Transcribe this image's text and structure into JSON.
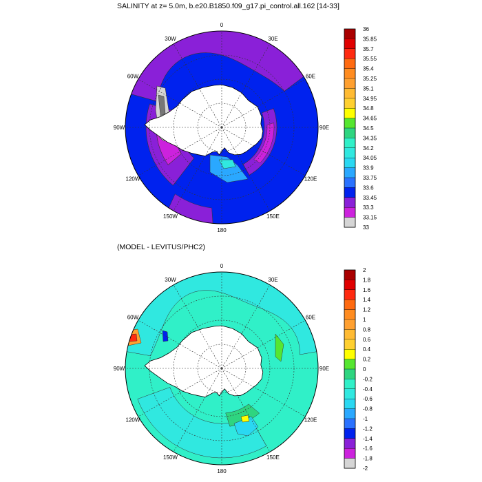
{
  "top_panel": {
    "title": "SALINITY at z=   5.0m, b.e20.B1850.f09_g17.pi_control.all.162 [14-33]",
    "colorbar": {
      "labels": [
        "36",
        "35.85",
        "35.7",
        "35.55",
        "35.4",
        "35.25",
        "35.1",
        "34.95",
        "34.8",
        "34.65",
        "34.5",
        "34.35",
        "34.2",
        "34.05",
        "33.9",
        "33.75",
        "33.6",
        "33.45",
        "33.3",
        "33.15",
        "33"
      ],
      "colors": [
        "#aa0000",
        "#e00000",
        "#ff2a10",
        "#ff6a10",
        "#ff8c20",
        "#ffa030",
        "#ffbb33",
        "#ffd030",
        "#ffff00",
        "#55e630",
        "#2ed580",
        "#30f0c8",
        "#30e8e0",
        "#2ad8f2",
        "#2aa8ff",
        "#2a72ff",
        "#0022ee",
        "#8a20d8",
        "#cc22dd",
        "#d5d5d5"
      ]
    },
    "lon_labels": [
      "0",
      "30E",
      "60E",
      "90E",
      "120E",
      "150E",
      "180",
      "150W",
      "120W",
      "90W",
      "60W",
      "30W"
    ]
  },
  "bottom_panel": {
    "title": "(MODEL - LEVITUS/PHC2)",
    "colorbar": {
      "labels": [
        "2",
        "1.8",
        "1.6",
        "1.4",
        "1.2",
        "1",
        "0.8",
        "0.6",
        "0.4",
        "0.2",
        "0",
        "-0.2",
        "-0.4",
        "-0.6",
        "-0.8",
        "-1",
        "-1.2",
        "-1.4",
        "-1.6",
        "-1.8",
        "-2"
      ],
      "colors": [
        "#aa0000",
        "#e00000",
        "#ff2a10",
        "#ff6a10",
        "#ff8c20",
        "#ffa030",
        "#ffbb33",
        "#ffd030",
        "#ffff00",
        "#55e630",
        "#2ed580",
        "#30f0c8",
        "#30e8e0",
        "#2ad8f2",
        "#2aa8ff",
        "#2a72ff",
        "#0022ee",
        "#8a20d8",
        "#cc22dd",
        "#d5d5d5"
      ]
    },
    "lon_labels": [
      "0",
      "30E",
      "60E",
      "90E",
      "120E",
      "150E",
      "180",
      "150W",
      "120W",
      "90W",
      "60W",
      "30W"
    ]
  }
}
